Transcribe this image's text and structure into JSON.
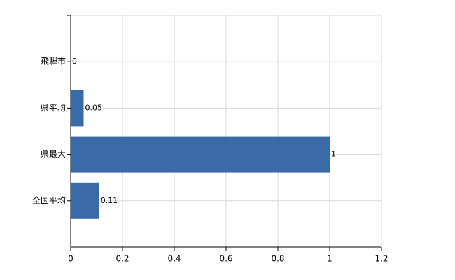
{
  "chart_data": {
    "type": "bar",
    "orientation": "horizontal",
    "categories": [
      "飛騨市",
      "県平均",
      "県最大",
      "全国平均"
    ],
    "values": [
      0,
      0.05,
      1,
      0.11
    ],
    "color": "#3b6aa8",
    "xlim": [
      0,
      1.2
    ],
    "xticks": [
      0,
      0.2,
      0.4,
      0.6,
      0.8,
      1,
      1.2
    ],
    "grid": true
  }
}
